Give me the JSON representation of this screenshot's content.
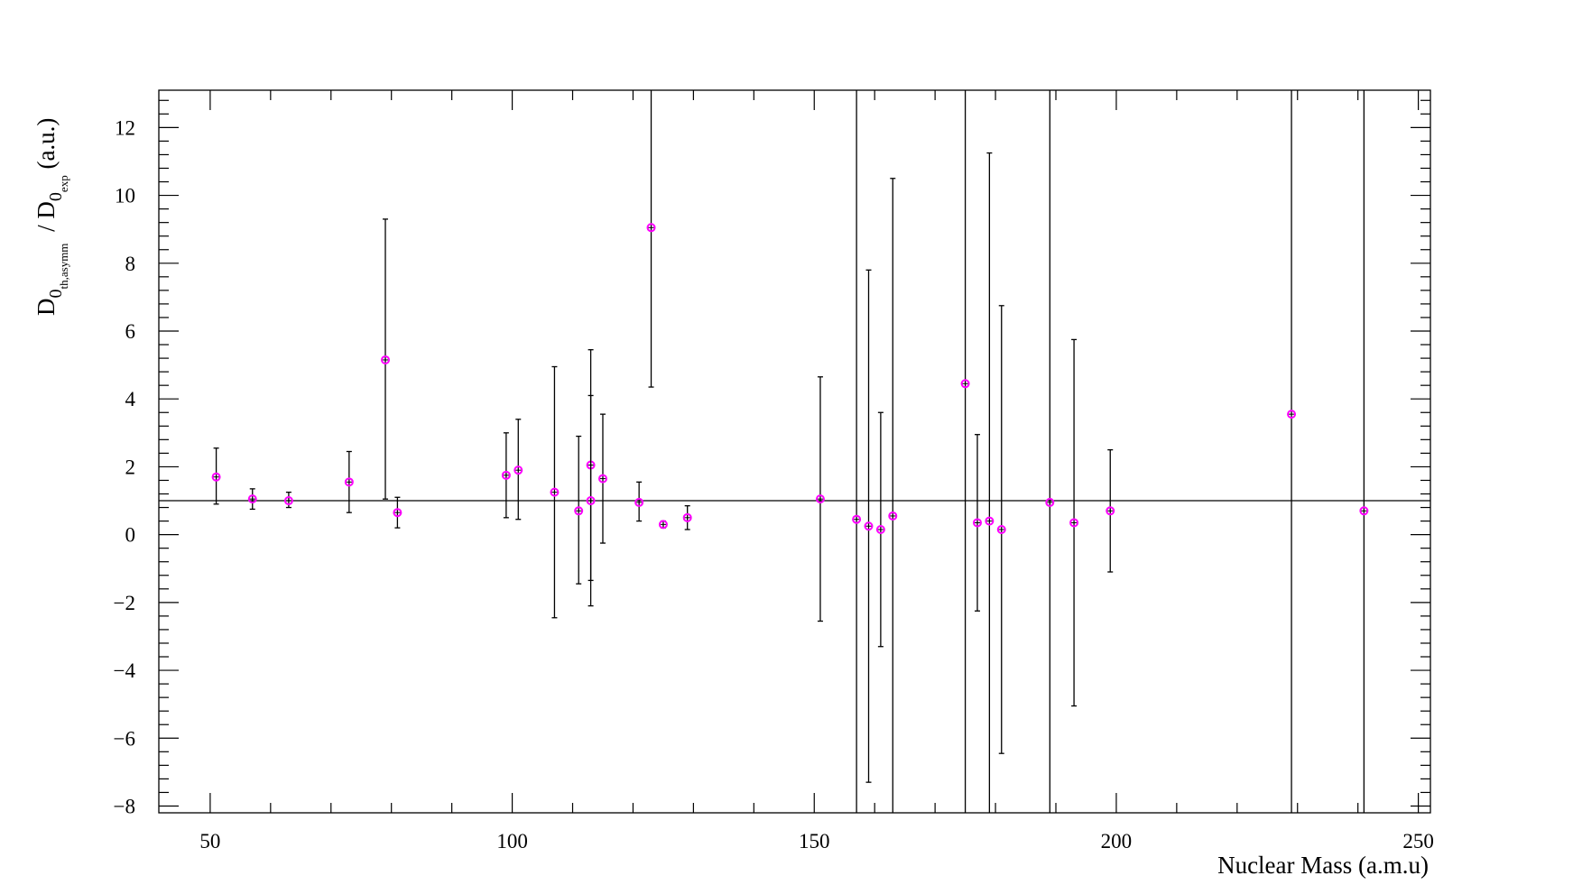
{
  "chart_data": {
    "type": "scatter",
    "title": "",
    "xlabel": "Nuclear Mass (a.m.u)",
    "ylabel": {
      "main": "D",
      "sub": "0",
      "subsub": "th,asymm",
      "divider": " / D",
      "sub2": "0",
      "subsub2": "exp",
      "units": " (a.u.)"
    },
    "xlim": [
      41.5,
      252
    ],
    "ylim": [
      -8.2,
      13.1
    ],
    "x_ticks": [
      50,
      100,
      150,
      200,
      250
    ],
    "x_tick_labels": [
      "50",
      "100",
      "150",
      "200",
      "250"
    ],
    "y_ticks": [
      -8,
      -6,
      -4,
      -2,
      0,
      2,
      4,
      6,
      8,
      10,
      12
    ],
    "y_tick_labels": [
      "−8",
      "−6",
      "−4",
      "−2",
      "0",
      "2",
      "4",
      "6",
      "8",
      "10",
      "12"
    ],
    "reference_line": 1,
    "grid": false,
    "marker_color": "#ff00ff",
    "errorbar_color": "#000000",
    "points": [
      {
        "x": 51,
        "y": 1.7,
        "ylo": 0.9,
        "yhi": 2.55
      },
      {
        "x": 57,
        "y": 1.05,
        "ylo": 0.75,
        "yhi": 1.35
      },
      {
        "x": 63,
        "y": 1.0,
        "ylo": 0.8,
        "yhi": 1.25
      },
      {
        "x": 73,
        "y": 1.55,
        "ylo": 0.65,
        "yhi": 2.45
      },
      {
        "x": 79,
        "y": 5.15,
        "ylo": 1.05,
        "yhi": 9.3
      },
      {
        "x": 81,
        "y": 0.65,
        "ylo": 0.2,
        "yhi": 1.1
      },
      {
        "x": 99,
        "y": 1.75,
        "ylo": 0.5,
        "yhi": 3.0
      },
      {
        "x": 101,
        "y": 1.9,
        "ylo": 0.45,
        "yhi": 3.4
      },
      {
        "x": 107,
        "y": 1.25,
        "ylo": -2.45,
        "yhi": 4.95
      },
      {
        "x": 111,
        "y": 0.7,
        "ylo": -1.45,
        "yhi": 2.9
      },
      {
        "x": 113,
        "y": 2.05,
        "ylo": -1.35,
        "yhi": 5.45
      },
      {
        "x": 113,
        "y": 1.0,
        "ylo": -2.1,
        "yhi": 4.1
      },
      {
        "x": 115,
        "y": 1.65,
        "ylo": -0.25,
        "yhi": 3.55
      },
      {
        "x": 121,
        "y": 0.95,
        "ylo": 0.4,
        "yhi": 1.55
      },
      {
        "x": 123,
        "y": 9.05,
        "ylo": 4.35,
        "yhi": 13.1
      },
      {
        "x": 125,
        "y": 0.3,
        "ylo": 0.2,
        "yhi": 0.4
      },
      {
        "x": 129,
        "y": 0.5,
        "ylo": 0.15,
        "yhi": 0.85
      },
      {
        "x": 151,
        "y": 1.05,
        "ylo": -2.55,
        "yhi": 4.65
      },
      {
        "x": 157,
        "y": 0.45,
        "ylo": -8.2,
        "yhi": 13.1
      },
      {
        "x": 159,
        "y": 0.25,
        "ylo": -7.3,
        "yhi": 7.8
      },
      {
        "x": 161,
        "y": 0.15,
        "ylo": -3.3,
        "yhi": 3.6
      },
      {
        "x": 163,
        "y": 0.55,
        "ylo": -8.2,
        "yhi": 10.5
      },
      {
        "x": 175,
        "y": 4.45,
        "ylo": -8.2,
        "yhi": 13.1
      },
      {
        "x": 177,
        "y": 0.35,
        "ylo": -2.25,
        "yhi": 2.95
      },
      {
        "x": 179,
        "y": 0.4,
        "ylo": -8.2,
        "yhi": 11.25
      },
      {
        "x": 181,
        "y": 0.15,
        "ylo": -6.45,
        "yhi": 6.75
      },
      {
        "x": 189,
        "y": 0.95,
        "ylo": -8.2,
        "yhi": 13.1
      },
      {
        "x": 193,
        "y": 0.35,
        "ylo": -5.05,
        "yhi": 5.75
      },
      {
        "x": 199,
        "y": 0.7,
        "ylo": -1.1,
        "yhi": 2.5
      },
      {
        "x": 229,
        "y": 3.55,
        "ylo": -8.2,
        "yhi": 13.1
      },
      {
        "x": 241,
        "y": 0.7,
        "ylo": -8.2,
        "yhi": 13.1
      }
    ]
  }
}
